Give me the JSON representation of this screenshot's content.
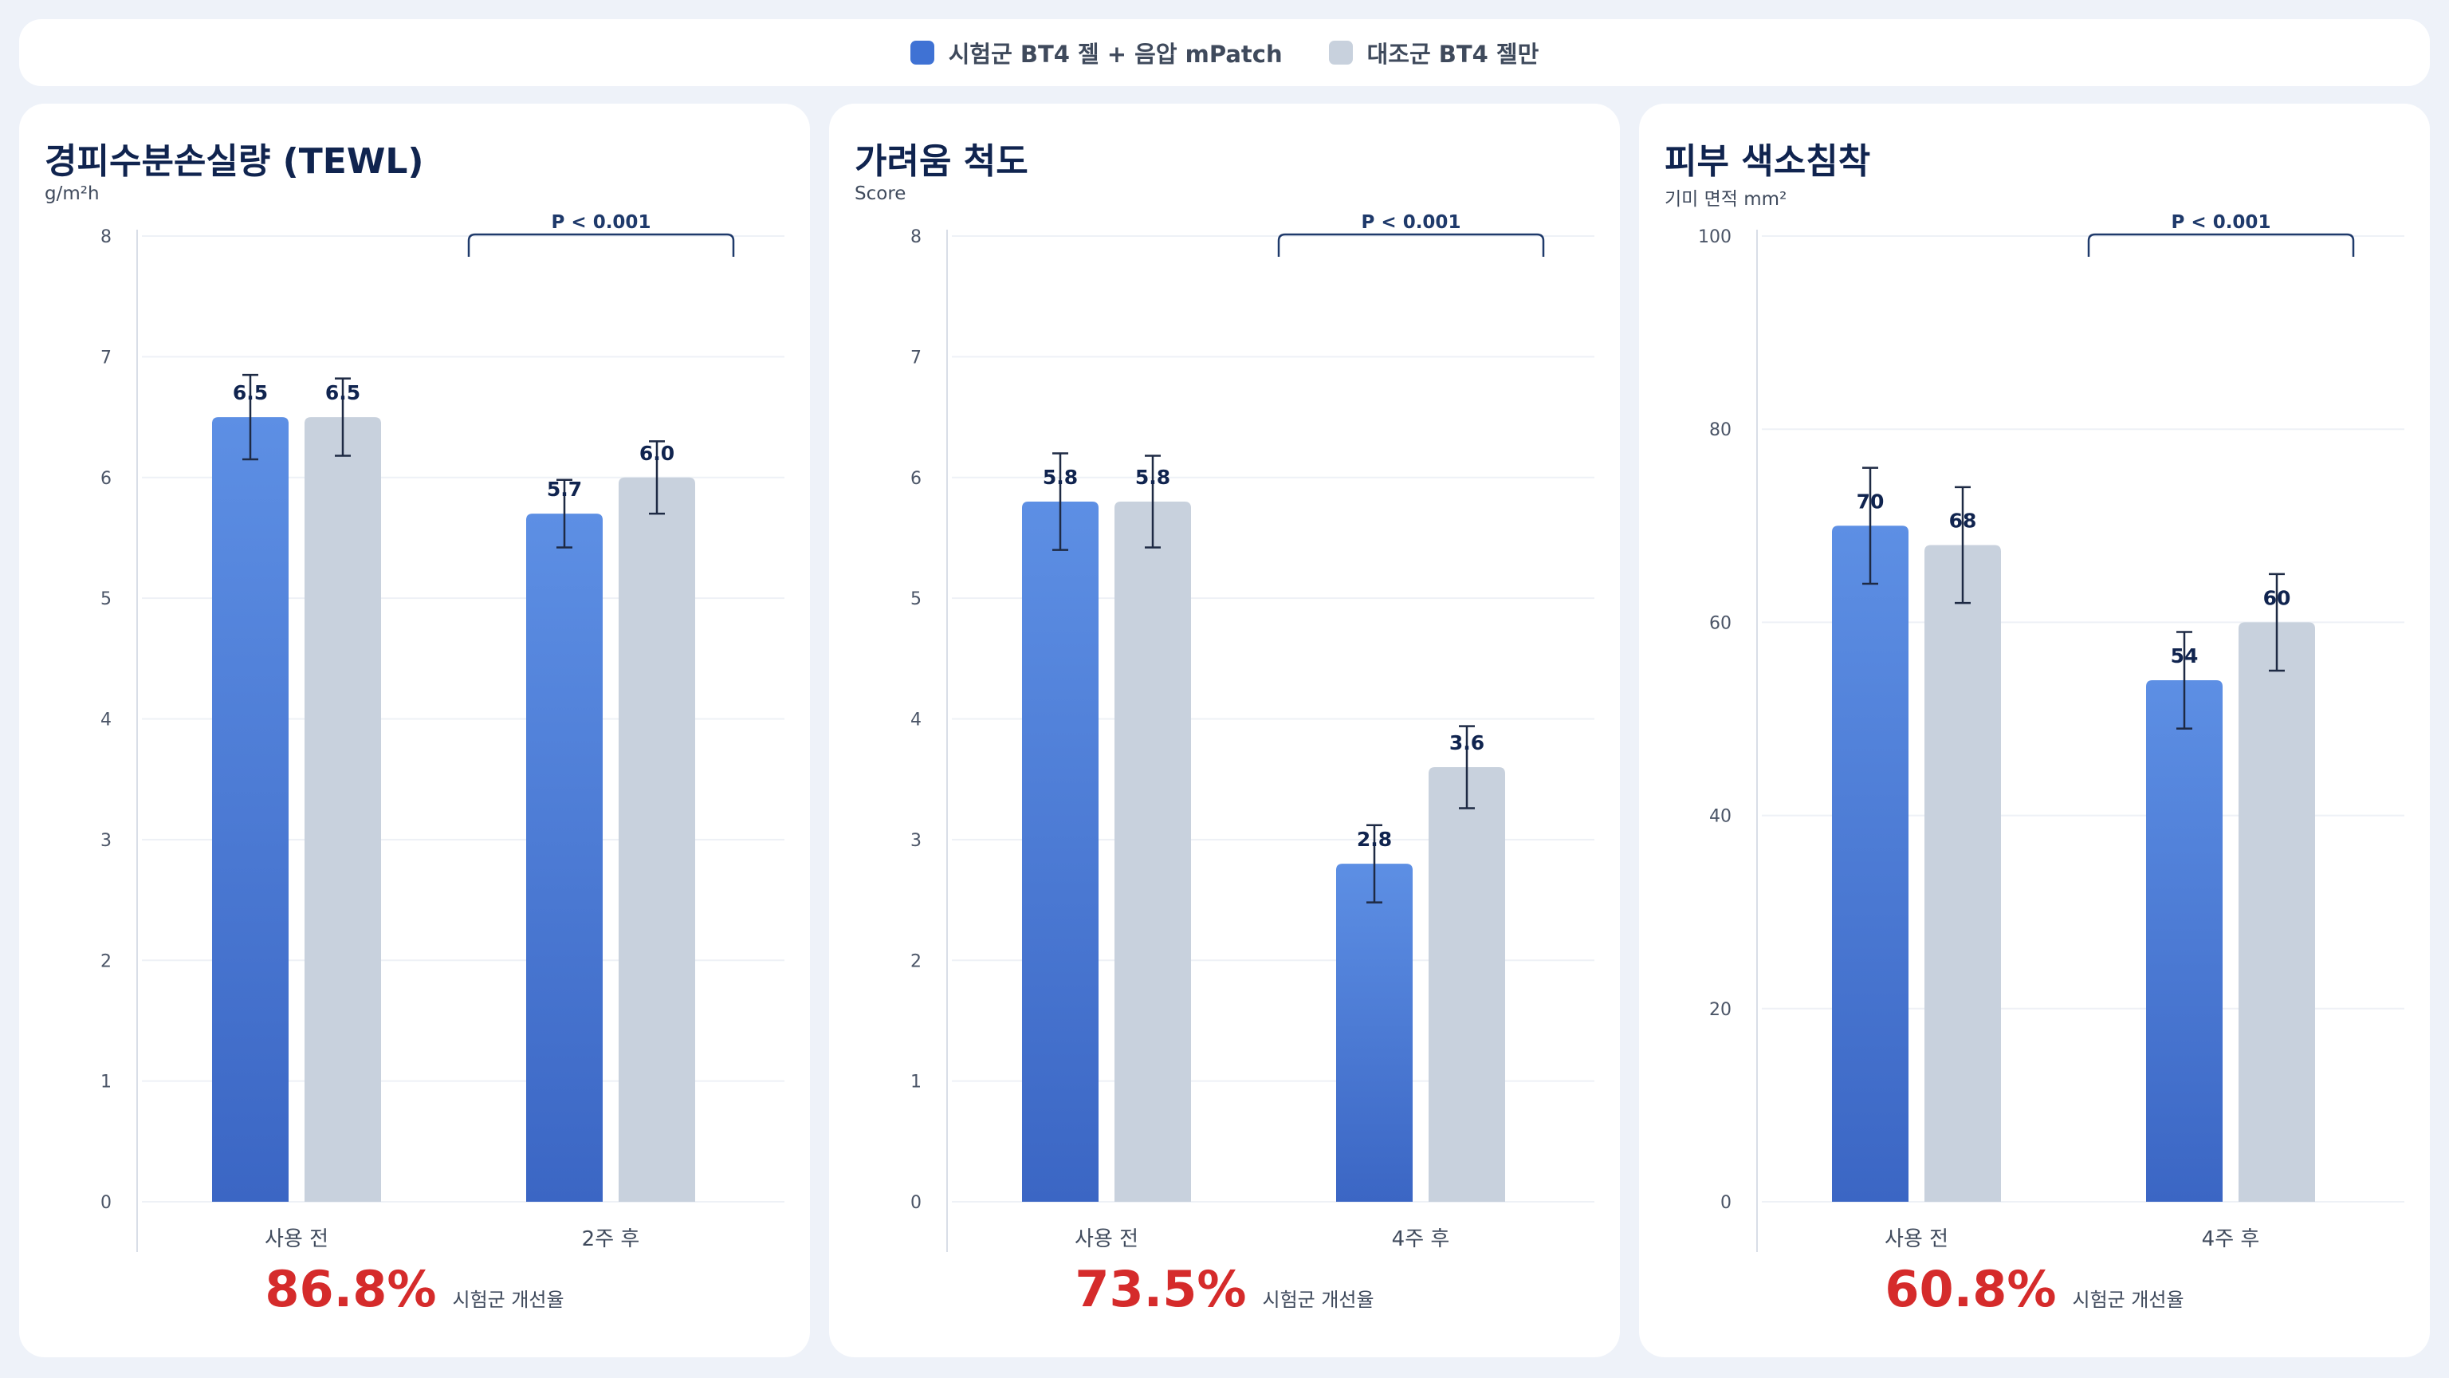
{
  "legend": [
    {
      "label": "시험군 BT4 젤 + 음압 mPatch",
      "color": "#3f72d4"
    },
    {
      "label": "대조군 BT4 젤만",
      "color": "#c8d1dd"
    }
  ],
  "colors": {
    "test_top": "#5d8fe4",
    "test_bottom": "#3b66c4",
    "control": "#c8d1dd",
    "significance": "#1f3a6b",
    "highlight": "#d52b2b"
  },
  "chart_data": [
    {
      "type": "bar",
      "title": "경피수분손실량 (TEWL)",
      "unit": "g/m²h",
      "categories": [
        "사용 전",
        "2주 후"
      ],
      "series": [
        {
          "name": "시험군 BT4 젤 + 음압 mPatch",
          "values": [
            6.5,
            5.7
          ],
          "errors": [
            0.35,
            0.28
          ],
          "labels": [
            "6.5",
            "5.7"
          ]
        },
        {
          "name": "대조군 BT4 젤만",
          "values": [
            6.5,
            6.0
          ],
          "errors": [
            0.32,
            0.3
          ],
          "labels": [
            "6.5",
            "6.0"
          ]
        }
      ],
      "ylim": [
        0,
        8
      ],
      "yticks": [
        0,
        1,
        2,
        3,
        4,
        5,
        6,
        7,
        8
      ],
      "significance": "P < 0.001",
      "improvement": {
        "value": "86.8%",
        "label": "시험군 개선율"
      }
    },
    {
      "type": "bar",
      "title": "가려움 척도",
      "unit": "Score",
      "categories": [
        "사용 전",
        "4주 후"
      ],
      "series": [
        {
          "name": "시험군 BT4 젤 + 음압 mPatch",
          "values": [
            5.8,
            2.8
          ],
          "errors": [
            0.4,
            0.32
          ],
          "labels": [
            "5.8",
            "2.8"
          ]
        },
        {
          "name": "대조군 BT4 젤만",
          "values": [
            5.8,
            3.6
          ],
          "errors": [
            0.38,
            0.34
          ],
          "labels": [
            "5.8",
            "3.6"
          ]
        }
      ],
      "ylim": [
        0,
        8
      ],
      "yticks": [
        0,
        1,
        2,
        3,
        4,
        5,
        6,
        7,
        8
      ],
      "significance": "P < 0.001",
      "improvement": {
        "value": "73.5%",
        "label": "시험군 개선율"
      }
    },
    {
      "type": "bar",
      "title": "피부 색소침착",
      "unit": "기미 면적 mm²",
      "categories": [
        "사용 전",
        "4주 후"
      ],
      "series": [
        {
          "name": "시험군 BT4 젤 + 음압 mPatch",
          "values": [
            70,
            54
          ],
          "errors": [
            6,
            5
          ],
          "labels": [
            "70",
            "54"
          ]
        },
        {
          "name": "대조군 BT4 젤만",
          "values": [
            68,
            60
          ],
          "errors": [
            6,
            5
          ],
          "labels": [
            "68",
            "60"
          ]
        }
      ],
      "ylim": [
        0,
        100
      ],
      "yticks": [
        0,
        20,
        40,
        60,
        80,
        100
      ],
      "significance": "P < 0.001",
      "improvement": {
        "value": "60.8%",
        "label": "시험군 개선율"
      }
    }
  ]
}
